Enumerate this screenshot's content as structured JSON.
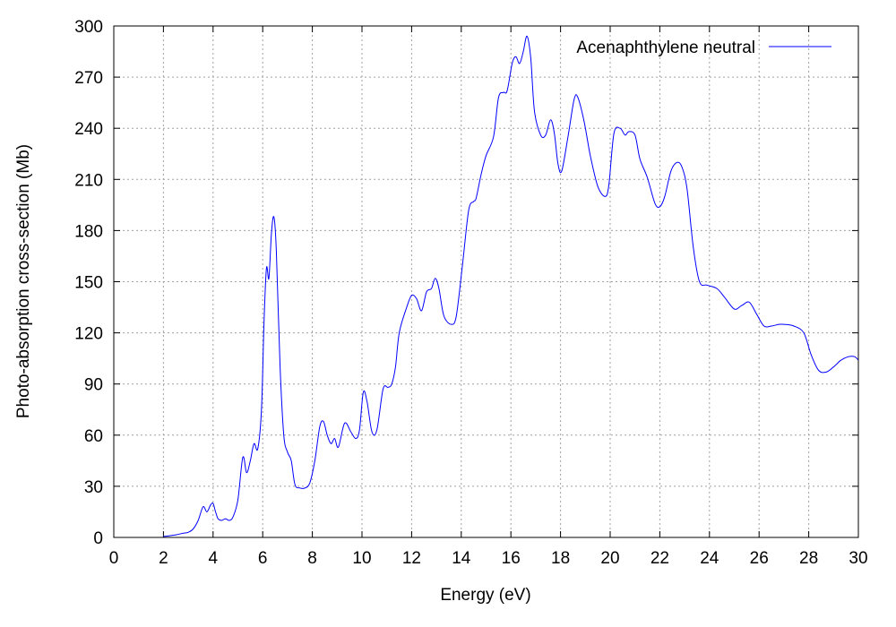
{
  "chart_data": {
    "type": "line",
    "xlabel": "Energy (eV)",
    "ylabel": "Photo-absorption cross-section (Mb)",
    "xlim": [
      0,
      30
    ],
    "ylim": [
      0,
      300
    ],
    "xticks": [
      0,
      2,
      4,
      6,
      8,
      10,
      12,
      14,
      16,
      18,
      20,
      22,
      24,
      26,
      28,
      30
    ],
    "yticks": [
      0,
      30,
      60,
      90,
      120,
      150,
      180,
      210,
      240,
      270,
      300
    ],
    "grid": true,
    "legend_position": "top-right",
    "series": [
      {
        "name": "Acenaphthylene neutral",
        "color": "#0000ff",
        "x": [
          2.0,
          2.5,
          2.8,
          3.0,
          3.2,
          3.4,
          3.6,
          3.75,
          3.9,
          4.0,
          4.1,
          4.2,
          4.35,
          4.5,
          4.65,
          4.8,
          5.0,
          5.2,
          5.35,
          5.5,
          5.65,
          5.8,
          5.95,
          6.05,
          6.15,
          6.25,
          6.35,
          6.45,
          6.55,
          6.7,
          6.85,
          7.0,
          7.15,
          7.3,
          7.5,
          7.7,
          7.9,
          8.1,
          8.3,
          8.45,
          8.6,
          8.75,
          8.9,
          9.05,
          9.3,
          9.55,
          9.75,
          9.9,
          10.05,
          10.2,
          10.4,
          10.6,
          10.85,
          11.05,
          11.2,
          11.35,
          11.5,
          11.8,
          12.0,
          12.2,
          12.4,
          12.6,
          12.8,
          12.95,
          13.1,
          13.3,
          13.6,
          13.8,
          14.05,
          14.3,
          14.5,
          14.6,
          14.8,
          15.0,
          15.3,
          15.5,
          15.7,
          15.85,
          16.05,
          16.2,
          16.35,
          16.5,
          16.65,
          16.8,
          16.95,
          17.2,
          17.4,
          17.6,
          17.75,
          17.9,
          18.05,
          18.3,
          18.55,
          18.7,
          18.95,
          19.2,
          19.5,
          19.8,
          19.95,
          20.15,
          20.4,
          20.6,
          20.75,
          21.0,
          21.2,
          21.5,
          21.8,
          22.0,
          22.2,
          22.45,
          22.7,
          22.9,
          23.1,
          23.35,
          23.6,
          23.9,
          24.3,
          24.6,
          25.0,
          25.3,
          25.6,
          25.9,
          26.2,
          26.5,
          26.8,
          27.0,
          27.4,
          27.8,
          28.1,
          28.4,
          28.7,
          29.0,
          29.3,
          29.6,
          29.85,
          30.0
        ],
        "values": [
          0.5,
          1.5,
          2.5,
          3,
          5,
          10,
          18,
          15,
          19,
          20,
          15,
          11,
          10,
          11,
          10,
          12,
          22,
          47,
          38,
          45,
          55,
          52,
          75,
          125,
          158,
          152,
          178,
          188,
          168,
          100,
          60,
          50,
          45,
          31,
          29,
          29,
          32,
          45,
          65,
          68,
          60,
          55,
          58,
          53,
          67,
          62,
          58,
          63,
          85,
          80,
          62,
          63,
          87,
          88,
          90,
          100,
          120,
          135,
          142,
          140,
          133,
          144,
          146,
          152,
          146,
          130,
          125,
          130,
          160,
          192,
          197,
          199,
          213,
          224,
          235,
          258,
          261,
          262,
          278,
          282,
          278,
          285,
          294,
          281,
          250,
          236,
          236,
          245,
          237,
          219,
          215,
          235,
          257,
          258,
          244,
          224,
          206,
          200,
          207,
          237,
          240,
          236,
          238,
          236,
          222,
          211,
          196,
          194,
          200,
          215,
          220,
          217,
          204,
          170,
          150,
          148,
          146,
          141,
          134,
          136,
          138,
          131,
          124,
          124,
          125,
          125,
          124,
          120,
          107,
          98,
          97,
          100,
          104,
          106,
          106,
          104
        ]
      }
    ]
  }
}
